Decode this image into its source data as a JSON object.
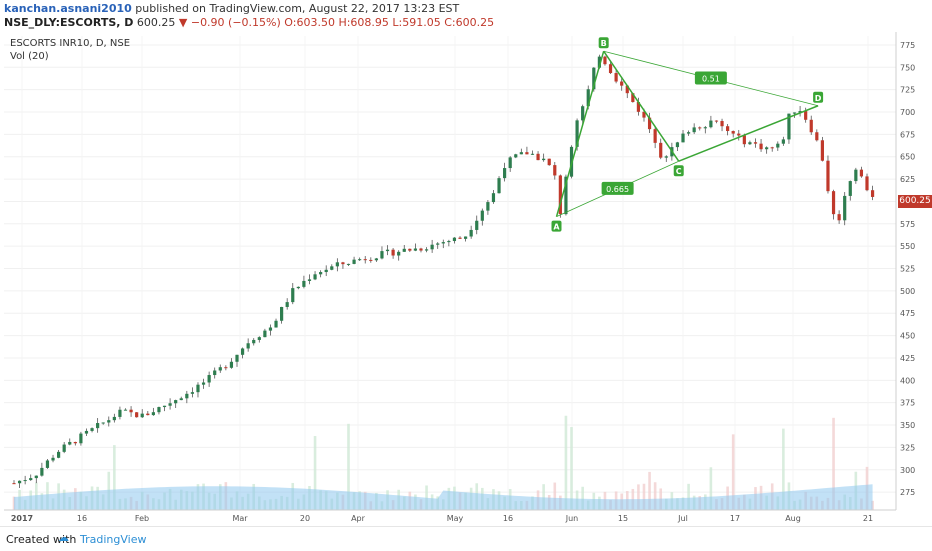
{
  "header": {
    "author": "kanchan.asnani2010",
    "published_text": "published on TradingView.com, August 22, 2017 13:23 EST",
    "symbol": "NSE_DLY:ESCORTS, D",
    "last": "600.25",
    "change": "▼ −0.90 (−0.15%)",
    "ohlc": "O:603.50 H:608.95 L:591.05 C:600.25"
  },
  "legend": {
    "main": "ESCORTS INR10, D, NSE",
    "vol": "Vol (20)"
  },
  "footer": {
    "created_with": "Created with",
    "brand": "TradingView",
    "logo_icon": "tradingview-cloud-icon"
  },
  "colors": {
    "up": "#2e7d4f",
    "down": "#c0392b",
    "pattern": "#3aa635",
    "volume_ma": "#8fc9ef",
    "price_tag": "#c0392b"
  },
  "chart_data": {
    "type": "candlestick",
    "ylim": [
      255,
      785
    ],
    "y_ticks": [
      275,
      300,
      325,
      350,
      375,
      400,
      425,
      450,
      475,
      500,
      525,
      550,
      575,
      600,
      625,
      650,
      675,
      700,
      725,
      750,
      775
    ],
    "x_ticks": [
      "2017",
      "16",
      "Feb",
      "Mar",
      "20",
      "Apr",
      "May",
      "16",
      "Jun",
      "15",
      "Jul",
      "17",
      "Aug",
      "21"
    ],
    "last_price_label": "600.25",
    "close_path": [
      [
        0,
        285
      ],
      [
        10,
        295
      ],
      [
        20,
        320
      ],
      [
        30,
        335
      ],
      [
        40,
        350
      ],
      [
        50,
        365
      ],
      [
        60,
        360
      ],
      [
        70,
        372
      ],
      [
        80,
        385
      ],
      [
        90,
        400
      ],
      [
        100,
        420
      ],
      [
        110,
        445
      ],
      [
        120,
        460
      ],
      [
        130,
        500
      ],
      [
        140,
        520
      ],
      [
        150,
        528
      ],
      [
        160,
        535
      ],
      [
        170,
        540
      ],
      [
        180,
        545
      ],
      [
        190,
        548
      ],
      [
        200,
        555
      ],
      [
        210,
        560
      ],
      [
        218,
        590
      ],
      [
        224,
        610
      ],
      [
        228,
        640
      ],
      [
        234,
        650
      ],
      [
        240,
        655
      ],
      [
        248,
        645
      ],
      [
        252,
        630
      ],
      [
        255,
        585
      ],
      [
        258,
        640
      ],
      [
        262,
        690
      ],
      [
        266,
        710
      ],
      [
        270,
        740
      ],
      [
        272,
        768
      ],
      [
        276,
        755
      ],
      [
        280,
        740
      ],
      [
        286,
        720
      ],
      [
        292,
        700
      ],
      [
        298,
        675
      ],
      [
        302,
        650
      ],
      [
        308,
        660
      ],
      [
        314,
        680
      ],
      [
        320,
        685
      ],
      [
        326,
        690
      ],
      [
        332,
        680
      ],
      [
        338,
        670
      ],
      [
        344,
        665
      ],
      [
        350,
        660
      ],
      [
        355,
        660
      ],
      [
        358,
        665
      ],
      [
        362,
        700
      ],
      [
        366,
        705
      ],
      [
        370,
        690
      ],
      [
        374,
        670
      ],
      [
        378,
        640
      ],
      [
        381,
        590
      ],
      [
        384,
        575
      ],
      [
        388,
        610
      ],
      [
        392,
        640
      ],
      [
        395,
        630
      ],
      [
        398,
        610
      ],
      [
        402,
        600
      ]
    ],
    "pattern": {
      "points": [
        {
          "label": "A",
          "x": 253,
          "y": 583
        },
        {
          "label": "B",
          "x": 275,
          "y": 768
        },
        {
          "label": "C",
          "x": 310,
          "y": 645
        },
        {
          "label": "D",
          "x": 375,
          "y": 707
        }
      ],
      "ratios": [
        {
          "label": "0.665",
          "between": [
            "A",
            "C"
          ]
        },
        {
          "label": "0.51",
          "between": [
            "B",
            "D"
          ]
        }
      ]
    },
    "volume": {
      "max": 800,
      "ma_label": "Vol (20)"
    }
  }
}
